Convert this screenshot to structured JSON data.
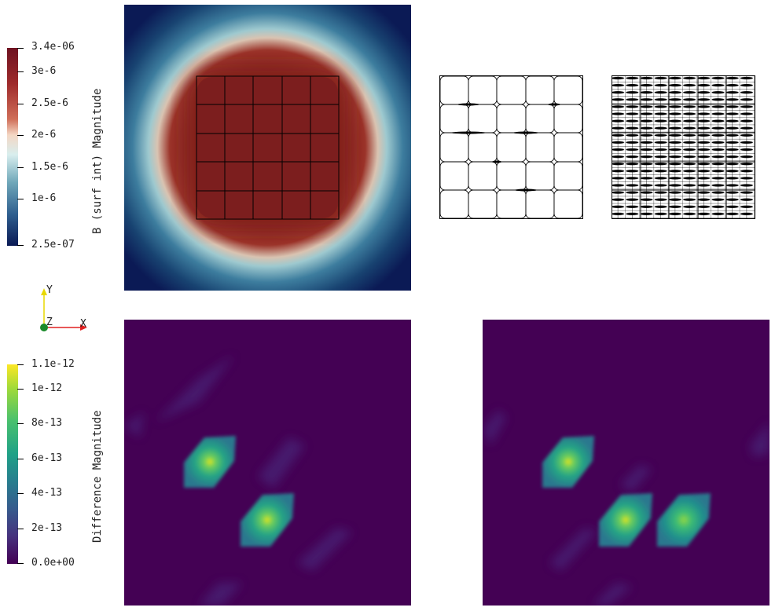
{
  "colorbar_top": {
    "title": "B (surf int) Magnitude",
    "ticks": [
      "3.4e-06",
      "3e-6",
      "2.5e-6",
      "2e-6",
      "1.5e-6",
      "1e-6",
      "2.5e-07"
    ],
    "colors": [
      "#6e1221",
      "#9e2a2b",
      "#d06e58",
      "#f4d7c4",
      "#d8eeee",
      "#6fa7b9",
      "#2f5f8f",
      "#0b1a55"
    ]
  },
  "colorbar_bottom": {
    "title": "Difference Magnitude",
    "ticks": [
      "1.1e-12",
      "1e-12",
      "8e-13",
      "6e-13",
      "4e-13",
      "2e-13",
      "0.0e+00"
    ],
    "colors": [
      "#fde725",
      "#a0da39",
      "#4ac16d",
      "#1fa187",
      "#277f8e",
      "#365c8d",
      "#46327e",
      "#440154"
    ]
  },
  "axes_triad": {
    "y": "Y",
    "z": "Z",
    "x": "X"
  }
}
